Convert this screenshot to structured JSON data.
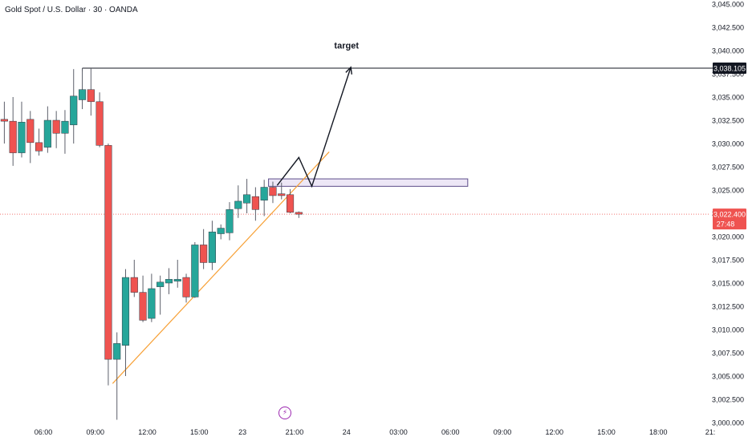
{
  "window": {
    "title": "Gold Spot / U.S. Dollar · 30 · OANDA"
  },
  "colors": {
    "up": "#26a69a",
    "down": "#ef5350",
    "wick": "#5d606b",
    "trendline": "#f7a035",
    "zone_fill": "#ede7f6",
    "zone_stroke": "#5d4e8a",
    "level_line": "#131722",
    "arrow": "#131722",
    "price_line": "#ef5350",
    "event": "#9c27b0"
  },
  "icons": {
    "event_marker": "lightning-bolt-icon",
    "event_glyph": "⚡"
  },
  "chart_data": {
    "type": "candlestick",
    "title": "Gold Spot / U.S. Dollar · 30 · OANDA",
    "ylim": [
      3000,
      3045
    ],
    "y_ticks": [
      "3,045.000",
      "3,042.500",
      "3,040.000",
      "3,037.500",
      "3,035.000",
      "3,032.500",
      "3,030.000",
      "3,027.500",
      "3,025.000",
      "3,022.500",
      "3,020.000",
      "3,017.500",
      "3,015.000",
      "3,012.500",
      "3,010.000",
      "3,007.500",
      "3,005.000",
      "3,002.500",
      "3,000.000"
    ],
    "y_tick_values": [
      3045,
      3042.5,
      3040,
      3037.5,
      3035,
      3032.5,
      3030,
      3027.5,
      3025,
      3022.5,
      3020,
      3017.5,
      3015,
      3012.5,
      3010,
      3007.5,
      3005,
      3002.5,
      3000
    ],
    "x_ticks": [
      "06:00",
      "09:00",
      "12:00",
      "15:00",
      "23",
      "21:00",
      "24",
      "03:00",
      "06:00",
      "09:00",
      "12:00",
      "15:00",
      "18:00",
      "21:"
    ],
    "x_tick_bars": [
      4.5,
      10.5,
      16.5,
      22.5,
      27.5,
      33.5,
      39.5,
      45.5,
      51.5,
      57.5,
      63.5,
      69.5,
      75.5,
      81.5
    ],
    "x_range_bars": [
      -0.5,
      81.5
    ],
    "candles": [
      {
        "bar": 0,
        "o": 3032.6,
        "h": 3034.5,
        "l": 3030.0,
        "c": 3032.4
      },
      {
        "bar": 1,
        "o": 3032.4,
        "h": 3035.0,
        "l": 3027.6,
        "c": 3029.0
      },
      {
        "bar": 2,
        "o": 3029.0,
        "h": 3034.5,
        "l": 3028.5,
        "c": 3032.3
      },
      {
        "bar": 3,
        "o": 3032.6,
        "h": 3033.5,
        "l": 3027.9,
        "c": 3030.1
      },
      {
        "bar": 4,
        "o": 3030.1,
        "h": 3031.6,
        "l": 3028.7,
        "c": 3029.2
      },
      {
        "bar": 5,
        "o": 3029.6,
        "h": 3034.0,
        "l": 3029.0,
        "c": 3032.5
      },
      {
        "bar": 6,
        "o": 3032.5,
        "h": 3033.5,
        "l": 3029.5,
        "c": 3031.1
      },
      {
        "bar": 7,
        "o": 3031.1,
        "h": 3033.6,
        "l": 3028.9,
        "c": 3032.4
      },
      {
        "bar": 8,
        "o": 3032.0,
        "h": 3038.0,
        "l": 3030.0,
        "c": 3035.1
      },
      {
        "bar": 9,
        "o": 3034.7,
        "h": 3038.1,
        "l": 3033.7,
        "c": 3035.8
      },
      {
        "bar": 10,
        "o": 3035.8,
        "h": 3038.1,
        "l": 3033.0,
        "c": 3034.5
      },
      {
        "bar": 11,
        "o": 3034.5,
        "h": 3035.5,
        "l": 3029.6,
        "c": 3029.8
      },
      {
        "bar": 12,
        "o": 3029.8,
        "h": 3030.0,
        "l": 3004.0,
        "c": 3006.8
      },
      {
        "bar": 13,
        "o": 3006.8,
        "h": 3009.7,
        "l": 3000.3,
        "c": 3008.5
      },
      {
        "bar": 14,
        "o": 3008.3,
        "h": 3016.5,
        "l": 3005.0,
        "c": 3015.6
      },
      {
        "bar": 15,
        "o": 3015.6,
        "h": 3017.5,
        "l": 3013.5,
        "c": 3014.0
      },
      {
        "bar": 16,
        "o": 3014.0,
        "h": 3015.8,
        "l": 3010.8,
        "c": 3011.0
      },
      {
        "bar": 17,
        "o": 3011.2,
        "h": 3016.0,
        "l": 3010.8,
        "c": 3014.4
      },
      {
        "bar": 18,
        "o": 3014.6,
        "h": 3015.8,
        "l": 3011.6,
        "c": 3015.1
      },
      {
        "bar": 19,
        "o": 3015.0,
        "h": 3016.6,
        "l": 3013.8,
        "c": 3015.4
      },
      {
        "bar": 20,
        "o": 3015.2,
        "h": 3017.5,
        "l": 3014.5,
        "c": 3015.4
      },
      {
        "bar": 21,
        "o": 3015.6,
        "h": 3016.0,
        "l": 3012.9,
        "c": 3013.5
      },
      {
        "bar": 22,
        "o": 3013.5,
        "h": 3019.4,
        "l": 3013.4,
        "c": 3019.1
      },
      {
        "bar": 23,
        "o": 3019.1,
        "h": 3020.8,
        "l": 3016.5,
        "c": 3017.2
      },
      {
        "bar": 24,
        "o": 3017.2,
        "h": 3021.7,
        "l": 3016.4,
        "c": 3020.5
      },
      {
        "bar": 25,
        "o": 3020.3,
        "h": 3021.3,
        "l": 3019.7,
        "c": 3020.9
      },
      {
        "bar": 26,
        "o": 3020.4,
        "h": 3023.7,
        "l": 3019.6,
        "c": 3022.9
      },
      {
        "bar": 27,
        "o": 3023.0,
        "h": 3025.5,
        "l": 3022.0,
        "c": 3023.8
      },
      {
        "bar": 28,
        "o": 3023.6,
        "h": 3026.2,
        "l": 3022.5,
        "c": 3024.5
      },
      {
        "bar": 29,
        "o": 3024.3,
        "h": 3025.3,
        "l": 3021.7,
        "c": 3022.9
      },
      {
        "bar": 30,
        "o": 3023.9,
        "h": 3026.1,
        "l": 3022.2,
        "c": 3025.3
      },
      {
        "bar": 31,
        "o": 3025.3,
        "h": 3025.9,
        "l": 3023.6,
        "c": 3024.4
      },
      {
        "bar": 32,
        "o": 3024.6,
        "h": 3025.8,
        "l": 3024.0,
        "c": 3024.4
      },
      {
        "bar": 33,
        "o": 3024.5,
        "h": 3025.1,
        "l": 3022.5,
        "c": 3022.6
      },
      {
        "bar": 34,
        "o": 3022.6,
        "h": 3022.7,
        "l": 3022.0,
        "c": 3022.4
      }
    ],
    "annotations": {
      "resistance_line": {
        "price": 3038.1,
        "from_bar": 9,
        "to_bar": 81.5
      },
      "demand_zone": {
        "top": 3026.2,
        "bottom": 3025.4,
        "from_bar": 30.5,
        "to_bar": 53.5
      },
      "trendline": {
        "from": [
          12.5,
          3004.2
        ],
        "to": [
          37.5,
          3029.1
        ]
      },
      "projection_path": [
        [
          31.5,
          3025.5
        ],
        [
          34.0,
          3028.5
        ],
        [
          35.5,
          3025.4
        ],
        [
          40.0,
          3038.2
        ]
      ],
      "target_label": "target",
      "target_label_anchor": [
        39.5,
        3040.2
      ],
      "current_price_line": 3022.4,
      "event_marker_bar": 33
    },
    "price_labels": {
      "level": {
        "value": 3038.105,
        "text": "3,038.105"
      },
      "current": {
        "value": 3022.4,
        "text": "3,022.400",
        "countdown": "27:48"
      }
    }
  }
}
